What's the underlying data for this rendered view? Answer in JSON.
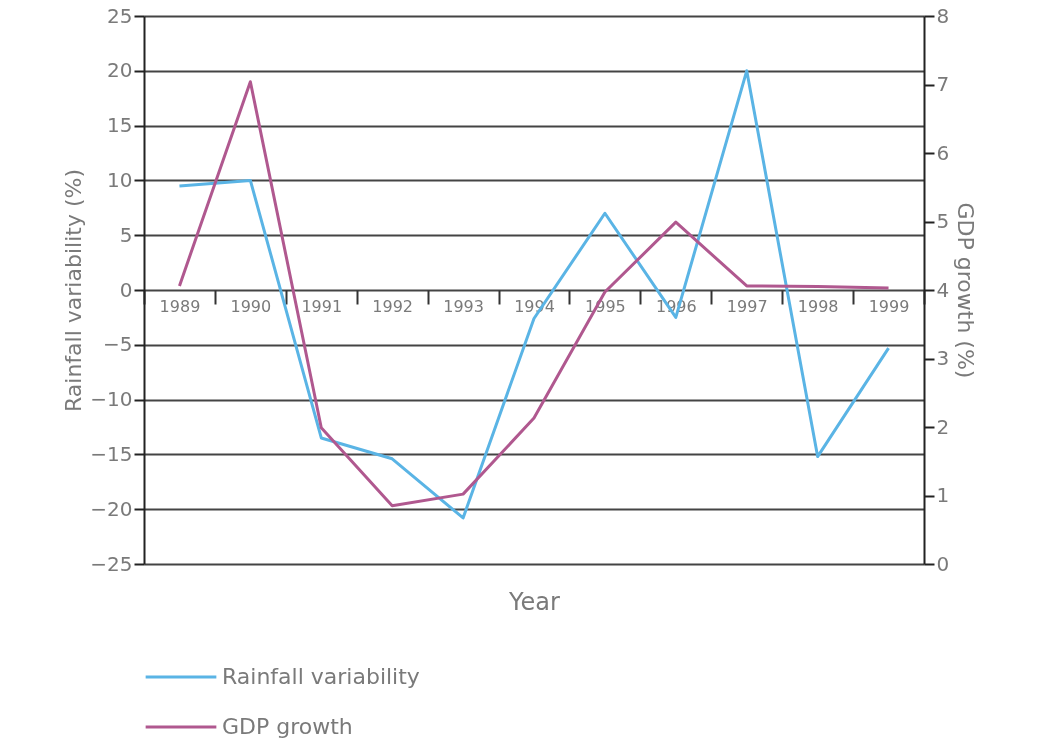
{
  "chart_data": {
    "type": "line",
    "xlabel": "Year",
    "ylabel": "Rainfall variability (%)",
    "y2label": "GDP growth (%)",
    "categories": [
      "1989",
      "1990",
      "1991",
      "1992",
      "1993",
      "1994",
      "1995",
      "1996",
      "1997",
      "1998",
      "1999"
    ],
    "series": [
      {
        "name": "Rainfall variability",
        "color": "#5ab4e5",
        "values": [
          9.5,
          10,
          -13.5,
          -15.4,
          -20.8,
          -2.6,
          7,
          -2.5,
          20,
          -15.2,
          -5.3
        ]
      },
      {
        "name": "GDP growth",
        "color": "#b0588f",
        "axis": "y2",
        "values": [
          4.06,
          7.04,
          1.99,
          0.85,
          1.02,
          2.13,
          3.97,
          4.99,
          4.06,
          4.05,
          4.03
        ]
      }
    ],
    "ylim": [
      -25,
      25
    ],
    "yticks": [
      -25,
      -20,
      -15,
      -10,
      -5,
      0,
      5,
      10,
      15,
      20,
      25
    ],
    "y2lim": [
      0,
      8
    ],
    "y2ticks": [
      0,
      1,
      2,
      3,
      4,
      5,
      6,
      7,
      8
    ],
    "grid": "y",
    "legend": "bottom left",
    "marker": "none",
    "line_style": "solid"
  }
}
